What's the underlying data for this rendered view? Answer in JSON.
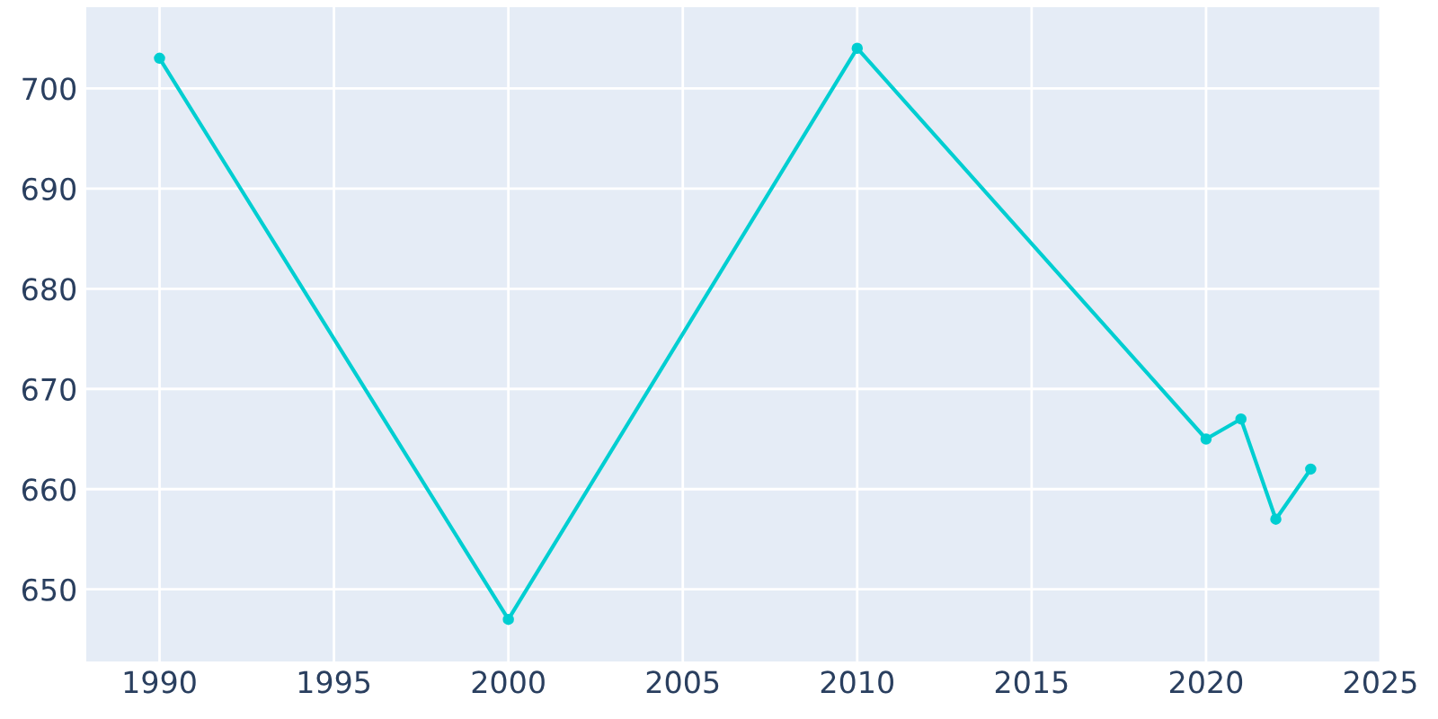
{
  "chart_data": {
    "type": "line",
    "x": [
      1990,
      2000,
      2010,
      2020,
      2021,
      2022,
      2023
    ],
    "series": [
      {
        "color": "#00ced1",
        "values": [
          703,
          647,
          704,
          665,
          667,
          657,
          662
        ]
      }
    ],
    "xlim": [
      1987.9,
      2025
    ],
    "ylim": [
      642.8,
      708.1
    ],
    "xticks": [
      1990,
      1995,
      2000,
      2005,
      2010,
      2015,
      2020,
      2025
    ],
    "yticks": [
      650,
      660,
      670,
      680,
      690,
      700
    ],
    "grid": true,
    "marker": "circle",
    "line_style": "solid",
    "legend": false
  }
}
